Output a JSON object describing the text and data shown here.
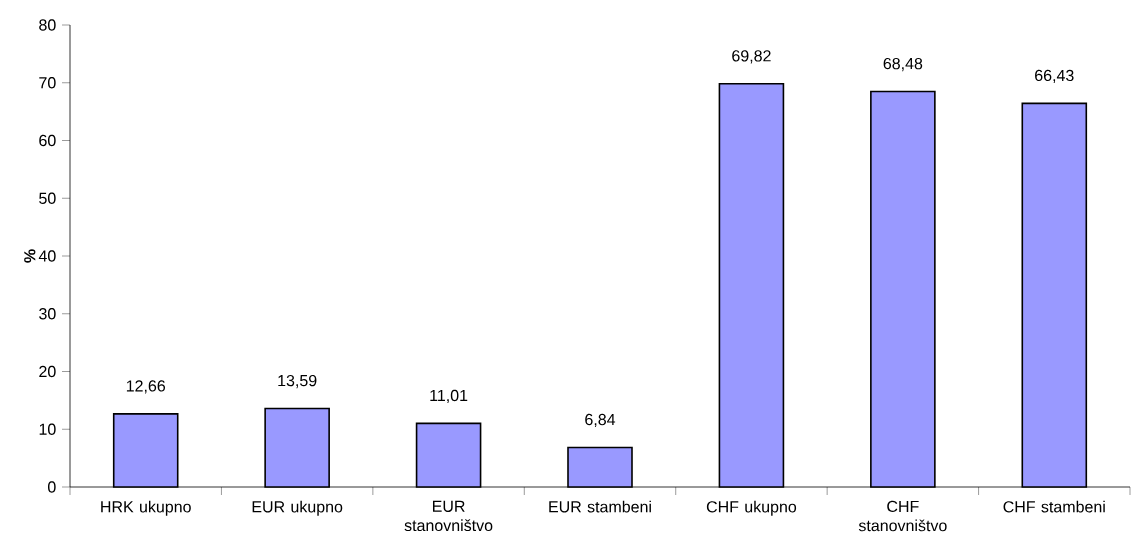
{
  "chart_data": {
    "type": "bar",
    "ylabel": "%",
    "categories": [
      "HRK ukupno",
      "EUR ukupno",
      "EUR stanovništvo",
      "EUR stambeni",
      "CHF ukupno",
      "CHF stanovništvo",
      "CHF stambeni"
    ],
    "values": [
      12.66,
      13.59,
      11.01,
      6.84,
      69.82,
      68.48,
      66.43
    ],
    "value_labels": [
      "12,66",
      "13,59",
      "11,01",
      "6,84",
      "69,82",
      "68,48",
      "66,43"
    ],
    "color": "#9999ff",
    "ylim": [
      0,
      80
    ],
    "yticks": [
      0,
      10,
      20,
      30,
      40,
      50,
      60,
      70,
      80
    ]
  }
}
